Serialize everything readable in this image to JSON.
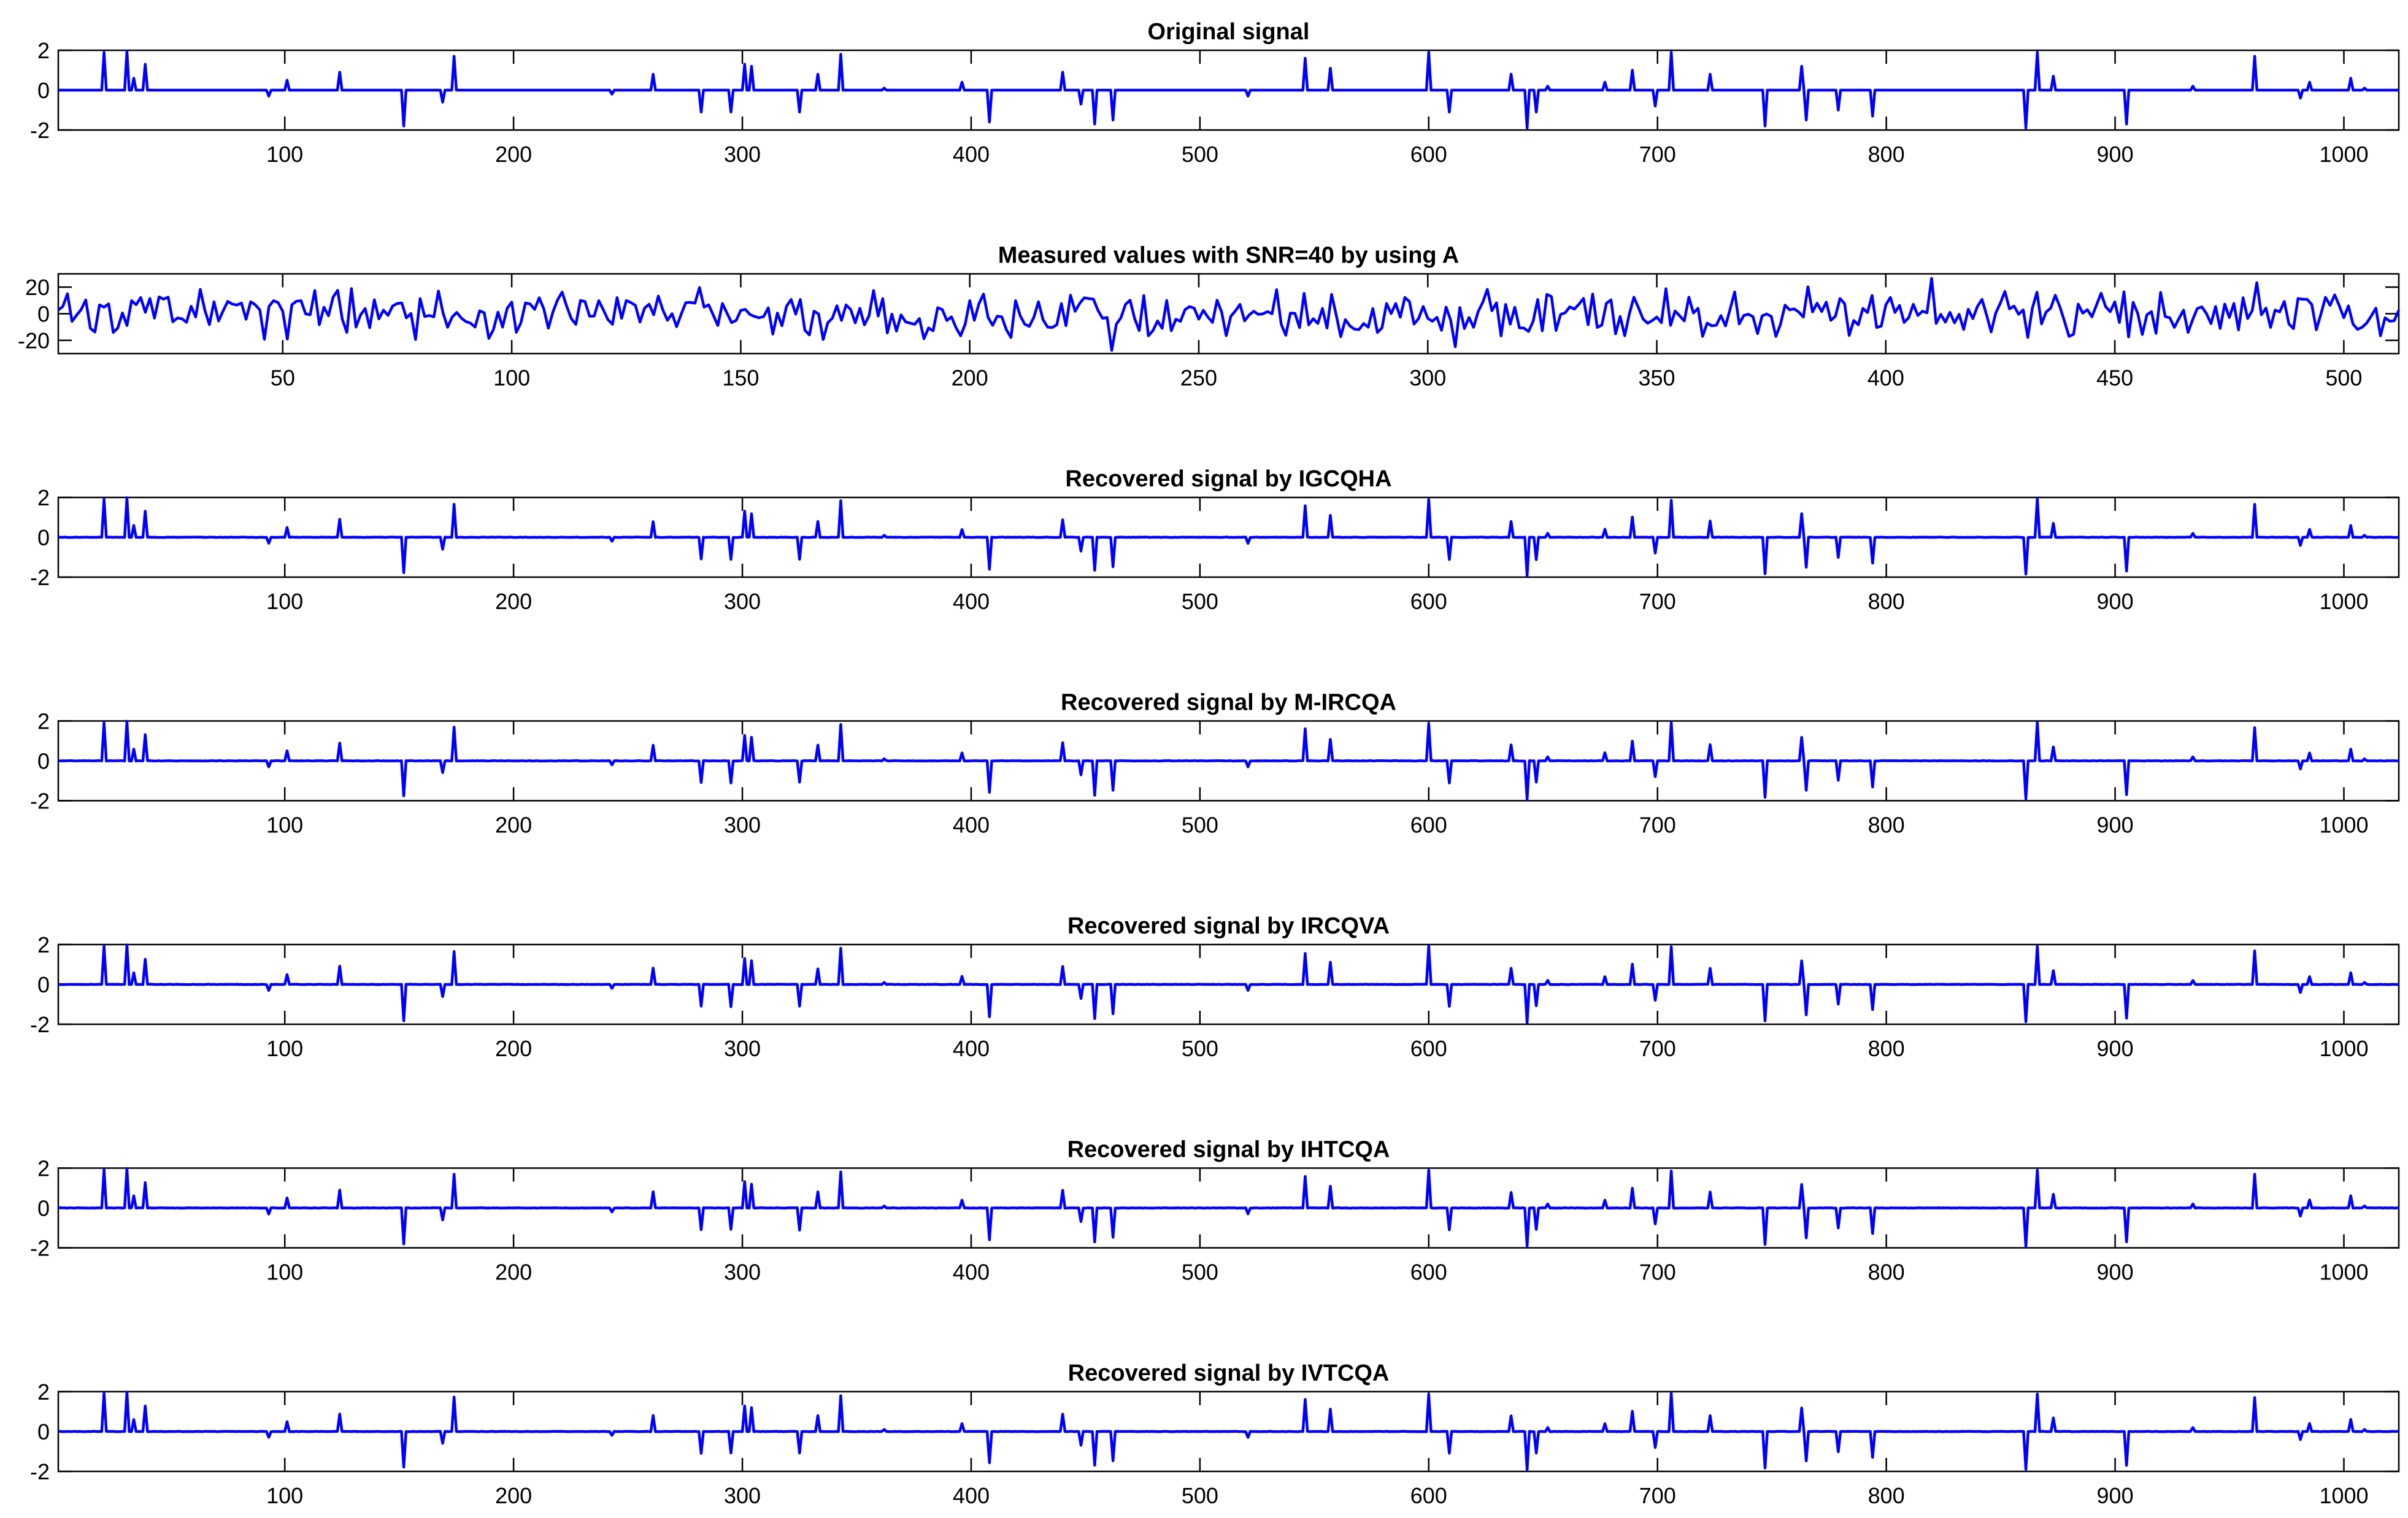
{
  "figure": {
    "line_color": "#0000ff"
  },
  "chart_data": [
    {
      "type": "line",
      "title": "Original signal",
      "xlim": [
        1,
        1024
      ],
      "ylim": [
        -2,
        2
      ],
      "xticks": [
        100,
        200,
        300,
        400,
        500,
        600,
        700,
        800,
        900,
        1000
      ],
      "yticks": [
        2,
        0,
        -2
      ],
      "grid": false,
      "series": [
        {
          "kind": "sparse",
          "length": 1024,
          "spikes": [
            [
              21,
              1.9
            ],
            [
              31,
              1.95
            ],
            [
              34,
              0.6
            ],
            [
              39,
              1.3
            ],
            [
              93,
              -0.3
            ],
            [
              101,
              0.5
            ],
            [
              124,
              0.9
            ],
            [
              152,
              -1.8
            ],
            [
              169,
              -0.6
            ],
            [
              174,
              1.7
            ],
            [
              243,
              -0.2
            ],
            [
              261,
              0.8
            ],
            [
              282,
              -1.1
            ],
            [
              295,
              -1.1
            ],
            [
              301,
              1.3
            ],
            [
              304,
              1.2
            ],
            [
              325,
              -1.1
            ],
            [
              333,
              0.8
            ],
            [
              343,
              1.8
            ],
            [
              362,
              0.1
            ],
            [
              396,
              0.4
            ],
            [
              408,
              -1.6
            ],
            [
              440,
              0.9
            ],
            [
              448,
              -0.7
            ],
            [
              454,
              -1.7
            ],
            [
              462,
              -1.5
            ],
            [
              521,
              -0.3
            ],
            [
              546,
              1.6
            ],
            [
              557,
              1.1
            ],
            [
              600,
              1.9
            ],
            [
              609,
              -1.1
            ],
            [
              636,
              0.8
            ],
            [
              643,
              -1.9
            ],
            [
              647,
              -1.1
            ],
            [
              652,
              0.2
            ],
            [
              677,
              0.4
            ],
            [
              689,
              1.0
            ],
            [
              699,
              -0.8
            ],
            [
              706,
              1.9
            ],
            [
              723,
              0.8
            ],
            [
              747,
              -1.8
            ],
            [
              763,
              1.2
            ],
            [
              765,
              -1.5
            ],
            [
              779,
              -1.0
            ],
            [
              794,
              -1.3
            ],
            [
              861,
              -1.9
            ],
            [
              866,
              1.9
            ],
            [
              873,
              0.7
            ],
            [
              905,
              -1.7
            ],
            [
              934,
              0.2
            ],
            [
              961,
              1.7
            ],
            [
              981,
              -0.4
            ],
            [
              985,
              0.4
            ],
            [
              1003,
              0.6
            ],
            [
              1009,
              0.1
            ]
          ]
        }
      ]
    },
    {
      "type": "line",
      "title": "Measured values with SNR=40 by using A",
      "xlim": [
        1,
        512
      ],
      "ylim": [
        -30,
        30
      ],
      "xticks": [
        50,
        100,
        150,
        200,
        250,
        300,
        350,
        400,
        450,
        500
      ],
      "yticks": [
        20,
        0,
        -20
      ],
      "grid": false,
      "series": [
        {
          "kind": "noise",
          "length": 512,
          "amplitude": 12,
          "spread": 26
        }
      ]
    },
    {
      "type": "line",
      "title": "Recovered signal by IGCQHA",
      "xlim": [
        1,
        1024
      ],
      "ylim": [
        -2,
        2
      ],
      "xticks": [
        100,
        200,
        300,
        400,
        500,
        600,
        700,
        800,
        900,
        1000
      ],
      "yticks": [
        2,
        0,
        -2
      ],
      "grid": false,
      "series": [
        {
          "kind": "recovered",
          "length": 1024
        }
      ]
    },
    {
      "type": "line",
      "title": "Recovered signal by M-IRCQA",
      "xlim": [
        1,
        1024
      ],
      "ylim": [
        -2,
        2
      ],
      "xticks": [
        100,
        200,
        300,
        400,
        500,
        600,
        700,
        800,
        900,
        1000
      ],
      "yticks": [
        2,
        0,
        -2
      ],
      "grid": false,
      "series": [
        {
          "kind": "recovered",
          "length": 1024
        }
      ]
    },
    {
      "type": "line",
      "title": "Recovered signal by IRCQVA",
      "xlim": [
        1,
        1024
      ],
      "ylim": [
        -2,
        2
      ],
      "xticks": [
        100,
        200,
        300,
        400,
        500,
        600,
        700,
        800,
        900,
        1000
      ],
      "yticks": [
        2,
        0,
        -2
      ],
      "grid": false,
      "series": [
        {
          "kind": "recovered",
          "length": 1024
        }
      ]
    },
    {
      "type": "line",
      "title": "Recovered signal by IHTCQA",
      "xlim": [
        1,
        1024
      ],
      "ylim": [
        -2,
        2
      ],
      "xticks": [
        100,
        200,
        300,
        400,
        500,
        600,
        700,
        800,
        900,
        1000
      ],
      "yticks": [
        2,
        0,
        -2
      ],
      "grid": false,
      "series": [
        {
          "kind": "recovered",
          "length": 1024
        }
      ]
    },
    {
      "type": "line",
      "title": "Recovered signal by IVTCQA",
      "xlim": [
        1,
        1024
      ],
      "ylim": [
        -2,
        2
      ],
      "xticks": [
        100,
        200,
        300,
        400,
        500,
        600,
        700,
        800,
        900,
        1000
      ],
      "yticks": [
        2,
        0,
        -2
      ],
      "grid": false,
      "series": [
        {
          "kind": "recovered",
          "length": 1024
        }
      ]
    }
  ]
}
